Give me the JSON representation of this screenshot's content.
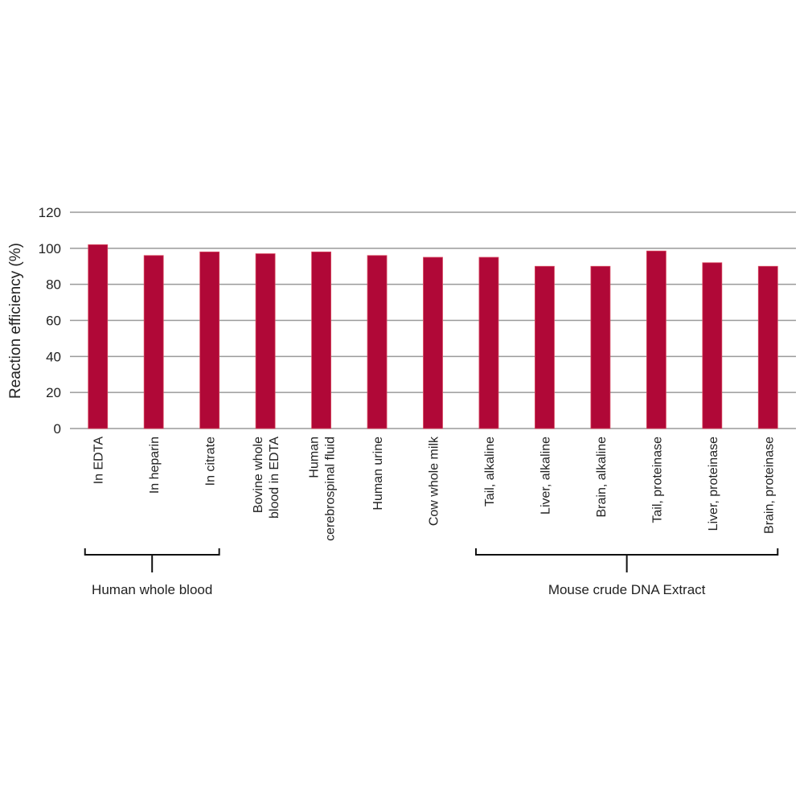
{
  "chart_data": {
    "type": "bar",
    "title": "",
    "xlabel": "",
    "ylabel": "Reaction efficiency (%)",
    "ylim": [
      0,
      120
    ],
    "yticks": [
      0,
      20,
      40,
      60,
      80,
      100,
      120
    ],
    "grid": true,
    "bar_color": "#b00837",
    "categories": [
      "In EDTA",
      "In heparin",
      "In citrate",
      "Bovine whole blood in EDTA",
      "Human cerebrospinal fluid",
      "Human urine",
      "Cow whole milk",
      "Tail, alkaline",
      "Liver, alkaline",
      "Brain, alkaline",
      "Tail, proteinase",
      "Liver, proteinase",
      "Brain, proteinase"
    ],
    "category_lines": [
      [
        "In EDTA"
      ],
      [
        "In heparin"
      ],
      [
        "In citrate"
      ],
      [
        "Bovine whole",
        "blood in EDTA"
      ],
      [
        "Human",
        "cerebrospinal fluid"
      ],
      [
        "Human urine"
      ],
      [
        "Cow whole milk"
      ],
      [
        "Tail, alkaline"
      ],
      [
        "Liver, alkaline"
      ],
      [
        "Brain, alkaline"
      ],
      [
        "Tail, proteinase"
      ],
      [
        "Liver, proteinase"
      ],
      [
        "Brain, proteinase"
      ]
    ],
    "values": [
      102,
      96,
      98,
      97,
      98,
      96,
      95,
      95,
      90,
      90,
      98.5,
      92,
      90
    ],
    "groups": [
      {
        "label": "Human whole blood",
        "from": 0,
        "to": 2
      },
      {
        "label": "Mouse crude DNA Extract",
        "from": 7,
        "to": 12
      }
    ]
  }
}
